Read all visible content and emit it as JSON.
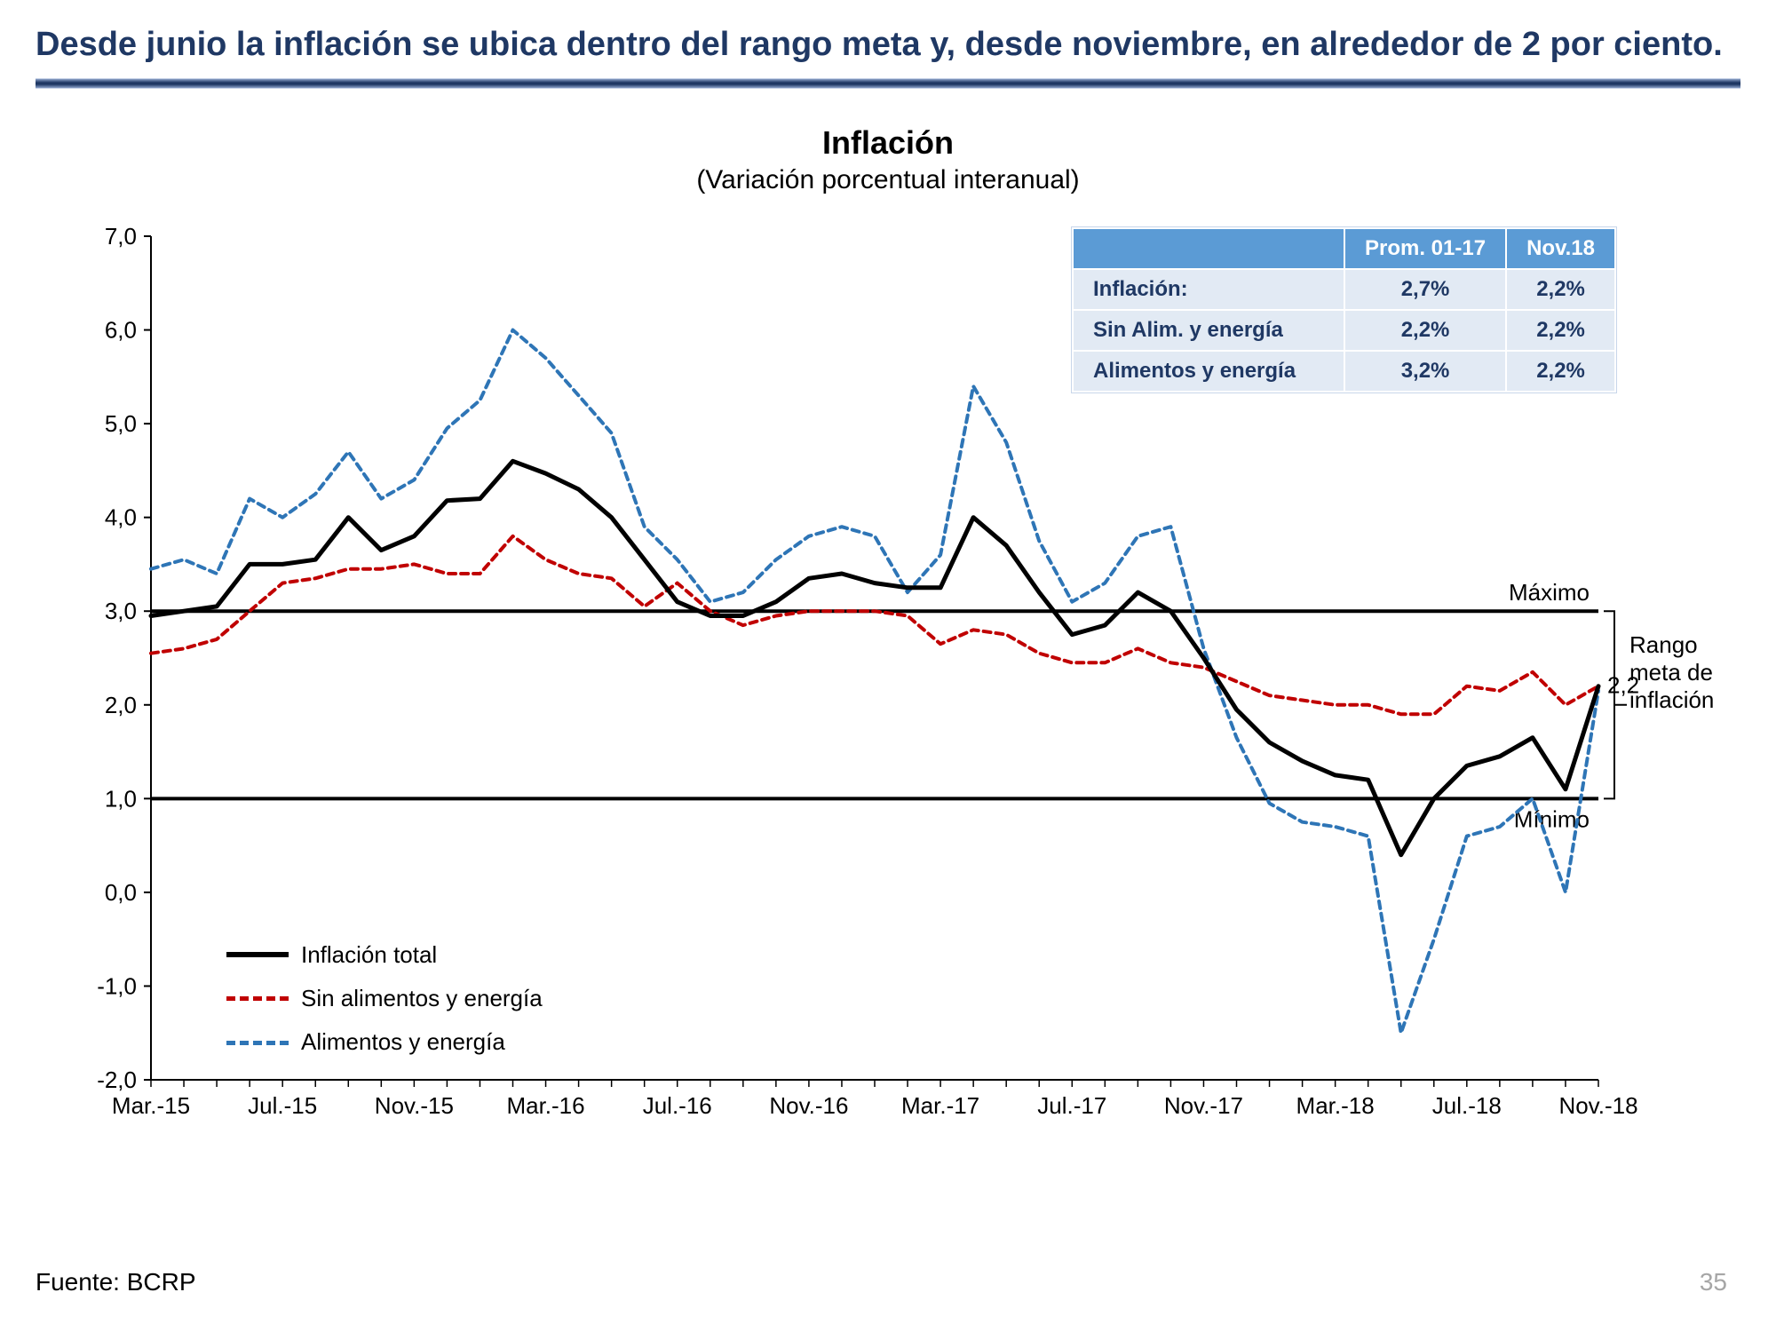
{
  "headline": "Desde junio la inflación se ubica dentro del rango meta y, desde noviembre, en alrededor de 2 por ciento.",
  "chart": {
    "type": "line",
    "title": "Inflación",
    "subtitle": "(Variación porcentual interanual)",
    "background_color": "#ffffff",
    "ylim": [
      -2.0,
      7.0
    ],
    "ytick_step": 1.0,
    "yticks": [
      "7,0",
      "6,0",
      "5,0",
      "4,0",
      "3,0",
      "2,0",
      "1,0",
      "0,0",
      "-1,0",
      "-2,0"
    ],
    "x_labels": [
      "Mar.-15",
      "Jul.-15",
      "Nov.-15",
      "Mar.-16",
      "Jul.-16",
      "Nov.-16",
      "Mar.-17",
      "Jul.-17",
      "Nov.-17",
      "Mar.-18",
      "Jul.-18",
      "Nov.-18"
    ],
    "x_count": 45,
    "grid_on": false,
    "axis_color": "#000000",
    "tick_fontsize": 26,
    "target_band": {
      "min": 1.0,
      "max": 3.0,
      "label_min": "Mínimo",
      "label_max": "Máximo",
      "range_label": "Rango meta de inflación",
      "line_color": "#000000"
    },
    "end_label": "2,2",
    "series": {
      "total": {
        "label": "Inflación total",
        "color": "#000000",
        "dash": "solid",
        "width": 5,
        "values": [
          2.95,
          3.0,
          3.05,
          3.5,
          3.5,
          3.55,
          4.0,
          3.65,
          3.8,
          4.18,
          4.2,
          4.6,
          4.47,
          4.3,
          4.0,
          3.55,
          3.1,
          2.95,
          2.95,
          3.1,
          3.35,
          3.4,
          3.3,
          3.25,
          3.25,
          4.0,
          3.7,
          3.2,
          2.75,
          2.85,
          3.2,
          3.0,
          2.5,
          1.95,
          1.6,
          1.4,
          1.25,
          1.2,
          0.4,
          1.0,
          1.35,
          1.45,
          1.65,
          1.1,
          2.2
        ]
      },
      "sin": {
        "label": "Sin alimentos y energía",
        "color": "#c00000",
        "dash": "8 6",
        "width": 4,
        "values": [
          2.55,
          2.6,
          2.7,
          3.0,
          3.3,
          3.35,
          3.45,
          3.45,
          3.5,
          3.4,
          3.4,
          3.8,
          3.55,
          3.4,
          3.35,
          3.05,
          3.3,
          3.0,
          2.85,
          2.95,
          3.0,
          3.0,
          3.0,
          2.95,
          2.65,
          2.8,
          2.75,
          2.55,
          2.45,
          2.45,
          2.6,
          2.45,
          2.4,
          2.25,
          2.1,
          2.05,
          2.0,
          2.0,
          1.9,
          1.9,
          2.2,
          2.15,
          2.35,
          2.0,
          2.2
        ]
      },
      "alim": {
        "label": "Alimentos y energía",
        "color": "#2e75b6",
        "dash": "8 6",
        "width": 4,
        "values": [
          3.45,
          3.55,
          3.4,
          4.2,
          4.0,
          4.25,
          4.7,
          4.2,
          4.4,
          4.95,
          5.25,
          6.0,
          5.7,
          5.3,
          4.9,
          3.9,
          3.55,
          3.1,
          3.2,
          3.55,
          3.8,
          3.9,
          3.8,
          3.2,
          3.6,
          5.4,
          4.8,
          3.75,
          3.1,
          3.3,
          3.8,
          3.9,
          2.6,
          1.65,
          0.95,
          0.75,
          0.7,
          0.6,
          -1.5,
          -0.5,
          0.6,
          0.7,
          1.0,
          0.0,
          2.15
        ]
      }
    }
  },
  "table": {
    "header": [
      "",
      "Prom. 01-17",
      "Nov.18"
    ],
    "rows": [
      [
        "Inflación:",
        "2,7%",
        "2,2%"
      ],
      [
        "Sin Alim. y energía",
        "2,2%",
        "2,2%"
      ],
      [
        "Alimentos y energía",
        "3,2%",
        "2,2%"
      ]
    ],
    "header_bg": "#5b9bd5",
    "header_color": "#ffffff",
    "cell_bg": "#e2eaf4",
    "cell_color": "#1f3864"
  },
  "footer": "Fuente: BCRP",
  "page_number": "35",
  "colors": {
    "headline": "#1f3864",
    "rule_dark": "#1f3864"
  }
}
